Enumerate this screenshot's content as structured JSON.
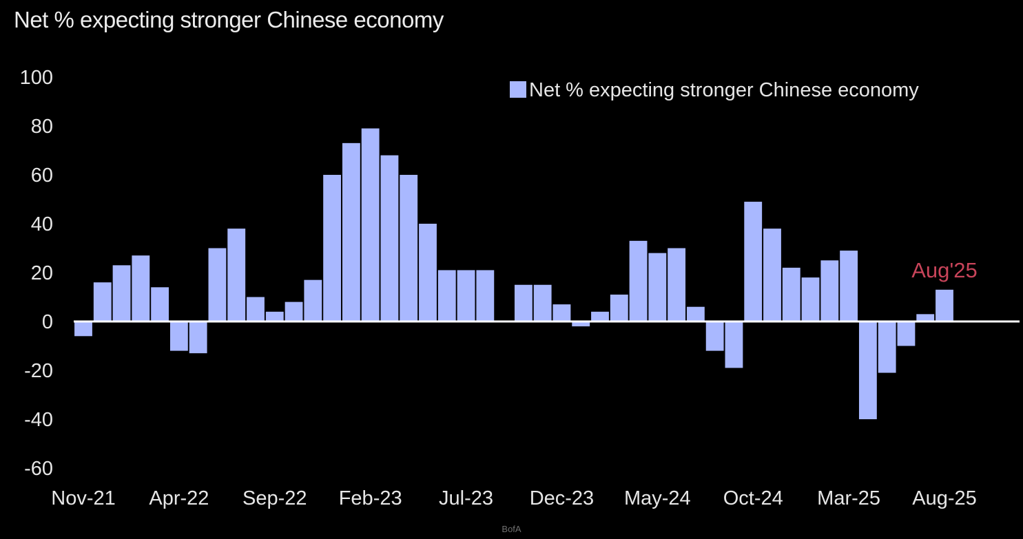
{
  "chart_data": {
    "type": "bar",
    "title": "Net % expecting stronger Chinese economy",
    "series": [
      {
        "name": "Net % expecting stronger Chinese economy",
        "color": "#a9b8ff",
        "values": [
          -6,
          16,
          23,
          27,
          14,
          -12,
          -13,
          30,
          38,
          10,
          4,
          8,
          17,
          60,
          73,
          79,
          68,
          60,
          40,
          21,
          21,
          21,
          null,
          15,
          15,
          7,
          -2,
          4,
          11,
          33,
          28,
          30,
          6,
          -12,
          -19,
          49,
          38,
          22,
          18,
          25,
          29,
          -40,
          -21,
          -10,
          3,
          13
        ]
      }
    ],
    "x_tick_labels": [
      "Nov-21",
      "Apr-22",
      "Sep-22",
      "Feb-23",
      "Jul-23",
      "Dec-23",
      "May-24",
      "Oct-24",
      "Mar-25",
      "Aug-25"
    ],
    "y_tick_labels": [
      "100",
      "80",
      "60",
      "40",
      "20",
      "0",
      "-20",
      "-40",
      "-60"
    ],
    "ylim": [
      -60,
      100
    ],
    "y_step": 20,
    "grid": false,
    "zero_line": true,
    "legend_position": "top-right",
    "annotation": {
      "text": "Aug'25",
      "color": "#c8445a"
    },
    "background": "#000000"
  },
  "footer": {
    "source": "BofA"
  }
}
